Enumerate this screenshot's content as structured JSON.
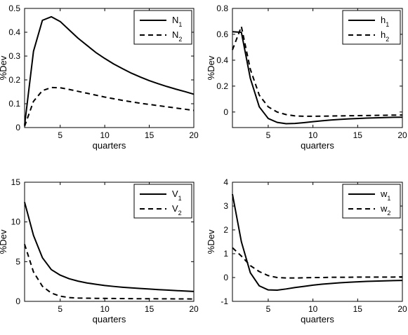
{
  "chart_data": [
    {
      "type": "line",
      "xlabel": "quarters",
      "ylabel": "%Dev",
      "xlim": [
        1,
        20
      ],
      "ylim": [
        0,
        0.5
      ],
      "xticks": [
        5,
        10,
        15,
        20
      ],
      "xtick_labels": [
        "5",
        "10",
        "15",
        "20"
      ],
      "yticks": [
        0,
        0.1,
        0.2,
        0.3,
        0.4,
        0.5
      ],
      "ytick_labels": [
        "0",
        "0.1",
        "0.2",
        "0.3",
        "0.4",
        "0.5"
      ],
      "legend_position": "top-right",
      "x": [
        1,
        2,
        3,
        4,
        5,
        6,
        7,
        8,
        9,
        10,
        11,
        12,
        13,
        14,
        15,
        16,
        17,
        18,
        19,
        20
      ],
      "series": [
        {
          "name": "N",
          "subscript": "1",
          "style": "solid",
          "values": [
            0.01,
            0.32,
            0.45,
            0.465,
            0.445,
            0.41,
            0.375,
            0.345,
            0.315,
            0.29,
            0.267,
            0.247,
            0.228,
            0.212,
            0.197,
            0.184,
            0.172,
            0.161,
            0.151,
            0.14
          ]
        },
        {
          "name": "N",
          "subscript": "2",
          "style": "dashed",
          "values": [
            0.005,
            0.11,
            0.155,
            0.168,
            0.167,
            0.16,
            0.152,
            0.144,
            0.136,
            0.128,
            0.121,
            0.114,
            0.108,
            0.102,
            0.097,
            0.092,
            0.087,
            0.082,
            0.077,
            0.072
          ]
        }
      ]
    },
    {
      "type": "line",
      "xlabel": "quarters",
      "ylabel": "%Dev",
      "xlim": [
        1,
        20
      ],
      "ylim": [
        -0.12,
        0.8
      ],
      "xticks": [
        5,
        10,
        15,
        20
      ],
      "xtick_labels": [
        "5",
        "10",
        "15",
        "20"
      ],
      "yticks": [
        0,
        0.2,
        0.4,
        0.6,
        0.8
      ],
      "ytick_labels": [
        "0",
        "0.2",
        "0.4",
        "0.6",
        "0.8"
      ],
      "legend_position": "top-right",
      "x": [
        1,
        2,
        3,
        4,
        5,
        6,
        7,
        8,
        9,
        10,
        11,
        12,
        13,
        14,
        15,
        16,
        17,
        18,
        19,
        20
      ],
      "series": [
        {
          "name": "h",
          "subscript": "1",
          "style": "solid",
          "values": [
            0.62,
            0.615,
            0.26,
            0.04,
            -0.05,
            -0.08,
            -0.09,
            -0.088,
            -0.082,
            -0.075,
            -0.068,
            -0.062,
            -0.057,
            -0.053,
            -0.05,
            -0.047,
            -0.045,
            -0.043,
            -0.041,
            -0.04
          ]
        },
        {
          "name": "h",
          "subscript": "2",
          "style": "dashed",
          "values": [
            0.48,
            0.66,
            0.33,
            0.13,
            0.04,
            0.0,
            -0.02,
            -0.03,
            -0.033,
            -0.033,
            -0.032,
            -0.031,
            -0.03,
            -0.029,
            -0.028,
            -0.027,
            -0.026,
            -0.025,
            -0.024,
            -0.023
          ]
        }
      ]
    },
    {
      "type": "line",
      "xlabel": "quarters",
      "ylabel": "%Dev",
      "xlim": [
        1,
        20
      ],
      "ylim": [
        0,
        15
      ],
      "xticks": [
        5,
        10,
        15,
        20
      ],
      "xtick_labels": [
        "5",
        "10",
        "15",
        "20"
      ],
      "yticks": [
        0,
        5,
        10,
        15
      ],
      "ytick_labels": [
        "0",
        "5",
        "10",
        "15"
      ],
      "legend_position": "top-right",
      "x": [
        1,
        2,
        3,
        4,
        5,
        6,
        7,
        8,
        9,
        10,
        11,
        12,
        13,
        14,
        15,
        16,
        17,
        18,
        19,
        20
      ],
      "series": [
        {
          "name": "V",
          "subscript": "1",
          "style": "solid",
          "values": [
            12.5,
            8.3,
            5.5,
            4.0,
            3.3,
            2.85,
            2.55,
            2.32,
            2.15,
            2.0,
            1.88,
            1.78,
            1.7,
            1.62,
            1.55,
            1.48,
            1.42,
            1.36,
            1.3,
            1.25
          ]
        },
        {
          "name": "V",
          "subscript": "2",
          "style": "dashed",
          "values": [
            7.2,
            3.7,
            1.9,
            1.05,
            0.65,
            0.48,
            0.42,
            0.4,
            0.38,
            0.37,
            0.36,
            0.35,
            0.34,
            0.33,
            0.33,
            0.32,
            0.32,
            0.31,
            0.31,
            0.3
          ]
        }
      ]
    },
    {
      "type": "line",
      "xlabel": "quarters",
      "ylabel": "%Dev",
      "xlim": [
        1,
        20
      ],
      "ylim": [
        -1,
        4
      ],
      "xticks": [
        5,
        10,
        15,
        20
      ],
      "xtick_labels": [
        "5",
        "10",
        "15",
        "20"
      ],
      "yticks": [
        -1,
        0,
        1,
        2,
        3,
        4
      ],
      "ytick_labels": [
        "-1",
        "0",
        "1",
        "2",
        "3",
        "4"
      ],
      "legend_position": "top-right",
      "x": [
        1,
        2,
        3,
        4,
        5,
        6,
        7,
        8,
        9,
        10,
        11,
        12,
        13,
        14,
        15,
        16,
        17,
        18,
        19,
        20
      ],
      "series": [
        {
          "name": "w",
          "subscript": "1",
          "style": "solid",
          "values": [
            3.5,
            1.5,
            0.2,
            -0.35,
            -0.52,
            -0.53,
            -0.48,
            -0.42,
            -0.37,
            -0.32,
            -0.28,
            -0.25,
            -0.22,
            -0.2,
            -0.18,
            -0.16,
            -0.15,
            -0.14,
            -0.13,
            -0.12
          ]
        },
        {
          "name": "w",
          "subscript": "2",
          "style": "dashed",
          "values": [
            1.25,
            0.9,
            0.5,
            0.25,
            0.08,
            0.0,
            -0.02,
            -0.02,
            -0.01,
            0.0,
            0.0,
            0.01,
            0.01,
            0.01,
            0.02,
            0.02,
            0.02,
            0.02,
            0.02,
            0.03
          ]
        }
      ]
    }
  ]
}
